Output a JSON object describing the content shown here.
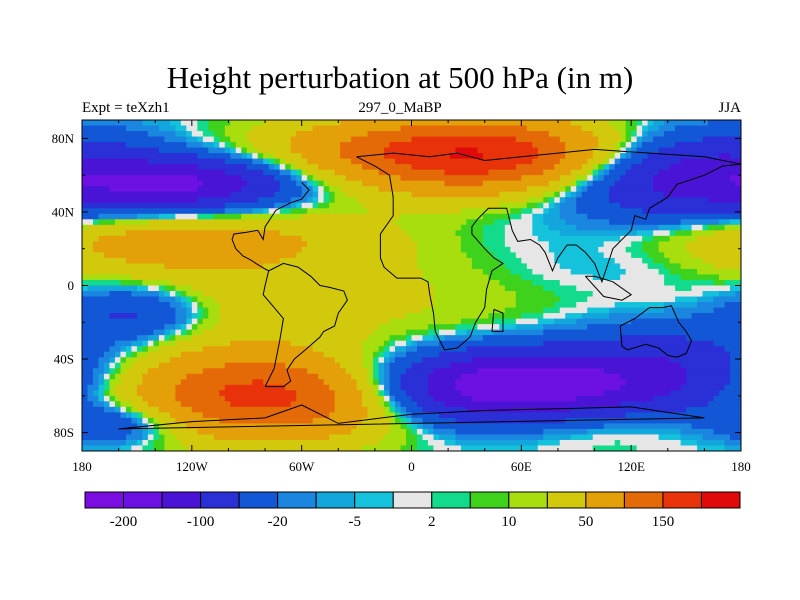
{
  "chart_data": {
    "type": "heatmap",
    "title": "Height perturbation at 500 hPa (in m)",
    "subtitle_left": "Expt = teXzh1",
    "subtitle_center": "297_0_MaBP",
    "subtitle_right": "JJA",
    "xlim": [
      -180,
      180
    ],
    "ylim": [
      -90,
      90
    ],
    "x_ticks": [
      {
        "value": -180,
        "label": "180"
      },
      {
        "value": -120,
        "label": "120W"
      },
      {
        "value": -60,
        "label": "60W"
      },
      {
        "value": 0,
        "label": "0"
      },
      {
        "value": 60,
        "label": "60E"
      },
      {
        "value": 120,
        "label": "120E"
      },
      {
        "value": 180,
        "label": "180"
      }
    ],
    "y_ticks": [
      {
        "value": 80,
        "label": "80N"
      },
      {
        "value": 40,
        "label": "40N"
      },
      {
        "value": 0,
        "label": "0"
      },
      {
        "value": -40,
        "label": "40S"
      },
      {
        "value": -80,
        "label": "80S"
      }
    ],
    "colorbar": {
      "levels": [
        -300,
        -200,
        -150,
        -100,
        -50,
        -20,
        -10,
        -5,
        -2,
        2,
        5,
        10,
        20,
        50,
        100,
        150,
        200
      ],
      "labels": [
        {
          "level": -200,
          "label": "-200"
        },
        {
          "level": -100,
          "label": "-100"
        },
        {
          "level": -20,
          "label": "-20"
        },
        {
          "level": -5,
          "label": "-5"
        },
        {
          "level": 2,
          "label": "2"
        },
        {
          "level": 10,
          "label": "10"
        },
        {
          "level": 50,
          "label": "50"
        },
        {
          "level": 150,
          "label": "150"
        }
      ],
      "colors": [
        "#7a0de0",
        "#6d10e3",
        "#4a14d6",
        "#2a2fd6",
        "#1257d6",
        "#1a86e0",
        "#12a6dc",
        "#14c2dc",
        "#e6e6e6",
        "#12dc8c",
        "#3ed21c",
        "#a8de0e",
        "#d2c80c",
        "#e4a008",
        "#e46a08",
        "#e8320a",
        "#e00a0a"
      ]
    },
    "field_features": [
      {
        "lon": 45,
        "lat": 70,
        "lonSpread": 55,
        "latSpread": 14,
        "value": 170
      },
      {
        "lon": -10,
        "lat": 75,
        "lonSpread": 60,
        "latSpread": 12,
        "value": 60
      },
      {
        "lon": -120,
        "lat": 55,
        "lonSpread": 40,
        "latSpread": 10,
        "value": -140
      },
      {
        "lon": 150,
        "lat": 60,
        "lonSpread": 50,
        "latSpread": 16,
        "value": -140
      },
      {
        "lon": -140,
        "lat": 25,
        "lonSpread": 70,
        "latSpread": 12,
        "value": 70
      },
      {
        "lon": -150,
        "lat": -15,
        "lonSpread": 30,
        "latSpread": 12,
        "value": -90
      },
      {
        "lon": -135,
        "lat": -10,
        "lonSpread": 55,
        "latSpread": 22,
        "value": 50
      },
      {
        "lon": 10,
        "lat": 0,
        "lonSpread": 70,
        "latSpread": 28,
        "value": 25
      },
      {
        "lon": 120,
        "lat": 15,
        "lonSpread": 80,
        "latSpread": 20,
        "value": -25
      },
      {
        "lon": 120,
        "lat": -5,
        "lonSpread": 40,
        "latSpread": 8,
        "value": 6
      },
      {
        "lon": -75,
        "lat": -60,
        "lonSpread": 55,
        "latSpread": 16,
        "value": 175
      },
      {
        "lon": 50,
        "lat": -55,
        "lonSpread": 55,
        "latSpread": 14,
        "value": -210
      },
      {
        "lon": 145,
        "lat": -45,
        "lonSpread": 40,
        "latSpread": 18,
        "value": -80
      },
      {
        "lon": 100,
        "lat": -75,
        "lonSpread": 40,
        "latSpread": 10,
        "value": 30
      },
      {
        "lon": -160,
        "lat": -75,
        "lonSpread": 25,
        "latSpread": 8,
        "value": -60
      }
    ],
    "coastlines": [
      [
        [
          -30,
          70
        ],
        [
          -20,
          65
        ],
        [
          -12,
          60
        ],
        [
          -10,
          48
        ],
        [
          -10,
          38
        ],
        [
          -17,
          28
        ],
        [
          -17,
          15
        ],
        [
          -15,
          10
        ],
        [
          -8,
          4
        ],
        [
          5,
          4
        ],
        [
          9,
          2
        ],
        [
          10,
          -5
        ],
        [
          12,
          -15
        ],
        [
          13,
          -25
        ],
        [
          18,
          -35
        ],
        [
          25,
          -34
        ],
        [
          32,
          -28
        ],
        [
          35,
          -20
        ],
        [
          40,
          -12
        ],
        [
          41,
          -2
        ],
        [
          44,
          8
        ],
        [
          50,
          12
        ],
        [
          45,
          15
        ],
        [
          40,
          20
        ],
        [
          33,
          28
        ],
        [
          33,
          32
        ],
        [
          36,
          36
        ],
        [
          42,
          42
        ],
        [
          52,
          42
        ],
        [
          55,
          30
        ],
        [
          58,
          24
        ],
        [
          65,
          25
        ],
        [
          70,
          22
        ],
        [
          73,
          18
        ],
        [
          77,
          8
        ],
        [
          80,
          15
        ],
        [
          85,
          22
        ],
        [
          90,
          22
        ],
        [
          95,
          18
        ],
        [
          100,
          12
        ],
        [
          104,
          2
        ],
        [
          110,
          20
        ],
        [
          120,
          30
        ],
        [
          122,
          38
        ],
        [
          128,
          36
        ],
        [
          130,
          42
        ],
        [
          140,
          48
        ],
        [
          145,
          55
        ],
        [
          160,
          60
        ],
        [
          170,
          65
        ],
        [
          180,
          66
        ]
      ],
      [
        [
          -30,
          70
        ],
        [
          -10,
          72
        ],
        [
          10,
          70
        ],
        [
          25,
          72
        ],
        [
          40,
          68
        ],
        [
          60,
          70
        ],
        [
          80,
          72
        ],
        [
          100,
          74
        ],
        [
          130,
          72
        ],
        [
          160,
          70
        ],
        [
          180,
          66
        ]
      ],
      [
        [
          -80,
          -55
        ],
        [
          -75,
          -45
        ],
        [
          -72,
          -30
        ],
        [
          -70,
          -18
        ],
        [
          -75,
          -12
        ],
        [
          -81,
          -5
        ],
        [
          -80,
          0
        ],
        [
          -78,
          8
        ],
        [
          -80,
          9
        ],
        [
          -85,
          12
        ],
        [
          -88,
          14
        ],
        [
          -92,
          16
        ],
        [
          -96,
          20
        ],
        [
          -98,
          25
        ],
        [
          -97,
          28
        ],
        [
          -90,
          29
        ],
        [
          -84,
          30
        ],
        [
          -81,
          25
        ],
        [
          -80,
          32
        ],
        [
          -76,
          38
        ],
        [
          -74,
          41
        ],
        [
          -70,
          43
        ],
        [
          -66,
          45
        ],
        [
          -60,
          47
        ],
        [
          -56,
          52
        ],
        [
          -60,
          56
        ]
      ],
      [
        [
          -80,
          -55
        ],
        [
          -70,
          -55
        ],
        [
          -66,
          -52
        ],
        [
          -68,
          -46
        ],
        [
          -64,
          -40
        ],
        [
          -58,
          -35
        ],
        [
          -50,
          -28
        ],
        [
          -48,
          -25
        ],
        [
          -42,
          -22
        ],
        [
          -40,
          -15
        ],
        [
          -35,
          -8
        ],
        [
          -37,
          -3
        ],
        [
          -45,
          -1
        ],
        [
          -50,
          0
        ],
        [
          -55,
          5
        ],
        [
          -62,
          10
        ],
        [
          -70,
          12
        ],
        [
          -76,
          9
        ],
        [
          -78,
          8
        ]
      ],
      [
        [
          114,
          -22
        ],
        [
          122,
          -18
        ],
        [
          130,
          -12
        ],
        [
          137,
          -12
        ],
        [
          142,
          -11
        ],
        [
          146,
          -20
        ],
        [
          150,
          -25
        ],
        [
          153,
          -30
        ],
        [
          150,
          -37
        ],
        [
          145,
          -39
        ],
        [
          140,
          -38
        ],
        [
          135,
          -34
        ],
        [
          128,
          -32
        ],
        [
          118,
          -35
        ],
        [
          115,
          -33
        ],
        [
          114,
          -22
        ]
      ],
      [
        [
          -60,
          -65
        ],
        [
          -40,
          -75
        ],
        [
          0,
          -70
        ],
        [
          40,
          -68
        ],
        [
          80,
          -67
        ],
        [
          120,
          -66
        ],
        [
          160,
          -72
        ],
        [
          -160,
          -78
        ],
        [
          -120,
          -74
        ],
        [
          -80,
          -72
        ],
        [
          -60,
          -65
        ]
      ],
      [
        [
          95,
          5
        ],
        [
          105,
          -6
        ],
        [
          115,
          -8
        ],
        [
          120,
          -5
        ],
        [
          110,
          2
        ],
        [
          100,
          5
        ],
        [
          95,
          5
        ]
      ],
      [
        [
          45,
          -13
        ],
        [
          50,
          -15
        ],
        [
          50,
          -25
        ],
        [
          44,
          -25
        ],
        [
          45,
          -13
        ]
      ]
    ]
  }
}
